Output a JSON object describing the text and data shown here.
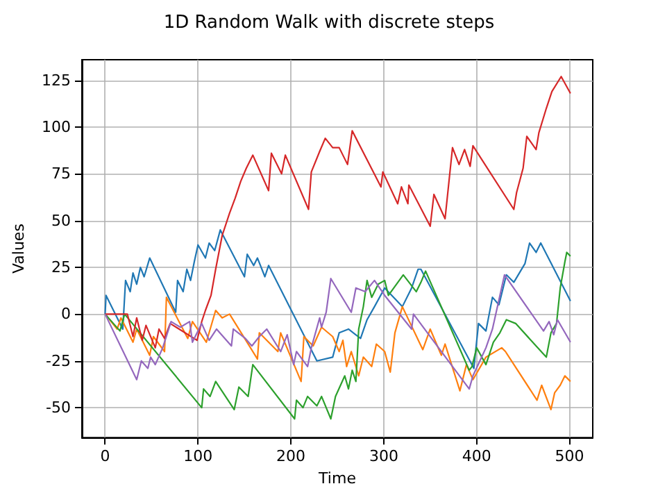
{
  "chart_data": {
    "type": "line",
    "title": "1D Random Walk with discrete steps",
    "xlabel": "Time",
    "ylabel": "Values",
    "xlim": [
      -25,
      525
    ],
    "ylim": [
      -66,
      136
    ],
    "xticks": [
      0,
      100,
      200,
      300,
      400,
      500
    ],
    "yticks": [
      -50,
      -25,
      0,
      25,
      50,
      75,
      100,
      125
    ],
    "grid": true,
    "marker": "none",
    "line_style": "solid",
    "series": [
      {
        "color": "#1f77b4",
        "x": [
          0,
          1,
          19,
          22,
          27,
          30,
          34,
          38,
          42,
          48,
          76,
          78,
          84,
          88,
          92,
          96,
          100,
          108,
          112,
          118,
          124,
          150,
          153,
          160,
          164,
          172,
          176,
          228,
          245,
          252,
          262,
          275,
          282,
          290,
          301,
          320,
          330,
          337,
          340,
          397,
          402,
          410,
          417,
          424,
          432,
          440,
          452,
          457,
          464,
          469,
          501
        ],
        "values": [
          0,
          10,
          -8,
          18,
          12,
          22,
          16,
          25,
          20,
          30,
          1,
          18,
          12,
          24,
          18,
          28,
          37,
          30,
          38,
          34,
          45,
          20,
          32,
          26,
          30,
          20,
          26,
          -25,
          -23,
          -10,
          -8,
          -13,
          -3,
          4,
          14,
          4,
          14,
          24,
          24,
          -29,
          -5,
          -9,
          9,
          5,
          21,
          17,
          27,
          38,
          33,
          38,
          7
        ]
      },
      {
        "color": "#ff7f0e",
        "x": [
          0,
          13,
          17,
          30,
          34,
          48,
          52,
          64,
          66,
          89,
          94,
          109,
          119,
          126,
          134,
          164,
          166,
          186,
          189,
          211,
          214,
          224,
          233,
          245,
          252,
          256,
          260,
          265,
          273,
          278,
          287,
          292,
          301,
          307,
          312,
          320,
          342,
          350,
          362,
          366,
          382,
          389,
          396,
          410,
          427,
          431,
          465,
          470,
          480,
          484,
          490,
          495,
          501
        ],
        "values": [
          0,
          -8,
          -2,
          -15,
          -8,
          -22,
          -12,
          -20,
          9,
          -13,
          -4,
          -15,
          2,
          -2,
          0,
          -24,
          -10,
          -20,
          -10,
          -36,
          -12,
          -17,
          -7,
          -12,
          -20,
          -14,
          -28,
          -20,
          -33,
          -23,
          -28,
          -16,
          -20,
          -31,
          -10,
          4,
          -19,
          -8,
          -22,
          -16,
          -41,
          -27,
          -35,
          -23,
          -18,
          -20,
          -46,
          -38,
          -51,
          -42,
          -38,
          -33,
          -36
        ]
      },
      {
        "color": "#2ca02c",
        "x": [
          0,
          16,
          21,
          104,
          106,
          113,
          119,
          139,
          144,
          154,
          159,
          204,
          206,
          213,
          218,
          228,
          233,
          243,
          248,
          258,
          262,
          266,
          270,
          273,
          278,
          282,
          287,
          294,
          301,
          305,
          321,
          335,
          340,
          345,
          392,
          395,
          400,
          410,
          418,
          425,
          432,
          442,
          475,
          480,
          486,
          490,
          495,
          497,
          501
        ],
        "values": [
          0,
          -9,
          0,
          -50,
          -40,
          -44,
          -36,
          -51,
          -39,
          -44,
          -27,
          -56,
          -46,
          -50,
          -44,
          -49,
          -44,
          -56,
          -44,
          -33,
          -40,
          -30,
          -36,
          -8,
          4,
          18,
          9,
          16,
          18,
          10,
          21,
          12,
          17,
          23,
          -30,
          -28,
          -18,
          -27,
          -15,
          -10,
          -3,
          -5,
          -23,
          -10,
          -5,
          14,
          28,
          33,
          31
        ]
      },
      {
        "color": "#d62728",
        "x": [
          0,
          24,
          30,
          34,
          40,
          44,
          54,
          58,
          64,
          70,
          99,
          104,
          108,
          114,
          119,
          126,
          134,
          140,
          146,
          152,
          159,
          176,
          179,
          190,
          194,
          219,
          222,
          231,
          237,
          245,
          252,
          261,
          266,
          297,
          299,
          315,
          319,
          326,
          327,
          350,
          354,
          366,
          374,
          381,
          387,
          393,
          396,
          440,
          443,
          450,
          454,
          464,
          467,
          475,
          481,
          491,
          501
        ],
        "values": [
          0,
          0,
          -12,
          -2,
          -14,
          -6,
          -18,
          -8,
          -13,
          -5,
          -14,
          -4,
          2,
          10,
          24,
          42,
          54,
          62,
          71,
          78,
          85,
          66,
          86,
          75,
          85,
          56,
          76,
          87,
          94,
          89,
          89,
          80,
          98,
          68,
          76,
          59,
          68,
          59,
          69,
          47,
          64,
          51,
          89,
          80,
          88,
          79,
          90,
          56,
          65,
          78,
          95,
          88,
          97,
          110,
          119,
          127,
          118
        ]
      },
      {
        "color": "#9467bd",
        "x": [
          0,
          34,
          39,
          46,
          49,
          54,
          62,
          71,
          81,
          91,
          94,
          104,
          112,
          120,
          136,
          138,
          151,
          158,
          166,
          174,
          189,
          196,
          203,
          206,
          218,
          222,
          231,
          233,
          238,
          243,
          265,
          270,
          280,
          290,
          301,
          330,
          332,
          392,
          396,
          410,
          417,
          430,
          472,
          478,
          483,
          487,
          501
        ],
        "values": [
          0,
          -35,
          -25,
          -29,
          -23,
          -27,
          -18,
          -4,
          -7,
          -4,
          -15,
          -5,
          -14,
          -8,
          -17,
          -8,
          -13,
          -17,
          -12,
          -8,
          -20,
          -11,
          -27,
          -20,
          -28,
          -18,
          -2,
          -7,
          1,
          19,
          1,
          14,
          12,
          18,
          10,
          -8,
          0,
          -40,
          -33,
          -18,
          -8,
          21,
          -9,
          -4,
          -11,
          -3,
          -15
        ]
      }
    ]
  }
}
